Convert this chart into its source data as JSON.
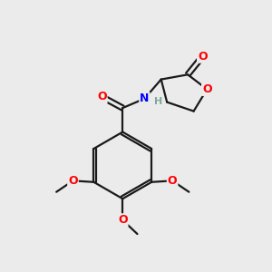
{
  "background_color": "#ebebeb",
  "bond_color": "#1a1a1a",
  "atom_colors": {
    "O": "#ff0000",
    "N": "#0000ff",
    "H": "#7aaa9a",
    "C": "#1a1a1a"
  },
  "figsize": [
    3.0,
    3.0
  ],
  "dpi": 100
}
